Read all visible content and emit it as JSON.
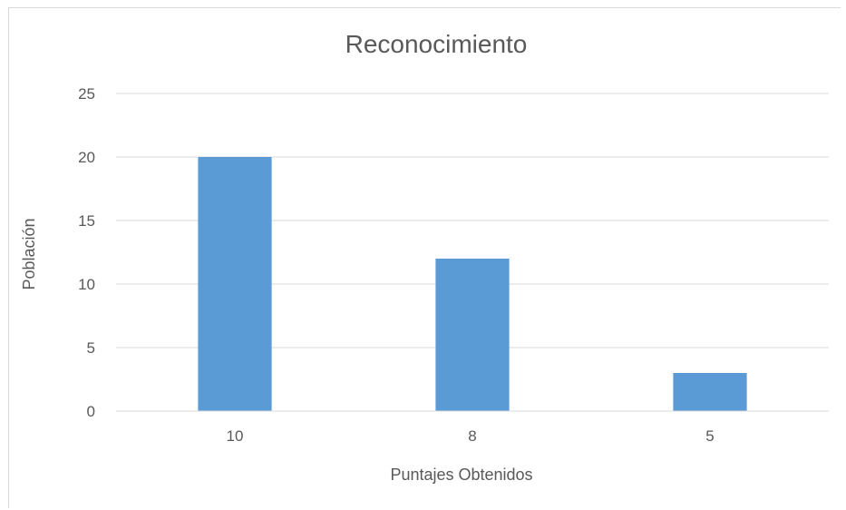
{
  "chart_data": {
    "type": "bar",
    "title": "Reconocimiento",
    "xlabel": "Puntajes Obtenidos",
    "ylabel": "Población",
    "categories": [
      "10",
      "8",
      "5"
    ],
    "values": [
      20,
      12,
      3
    ],
    "ylim": [
      0,
      25
    ],
    "yticks": [
      "0",
      "5",
      "10",
      "15",
      "20",
      "25"
    ],
    "grid": true,
    "legend": "none",
    "bar_color": "#5b9bd5",
    "grid_color": "#d9d9d9",
    "text_color": "#595959"
  }
}
